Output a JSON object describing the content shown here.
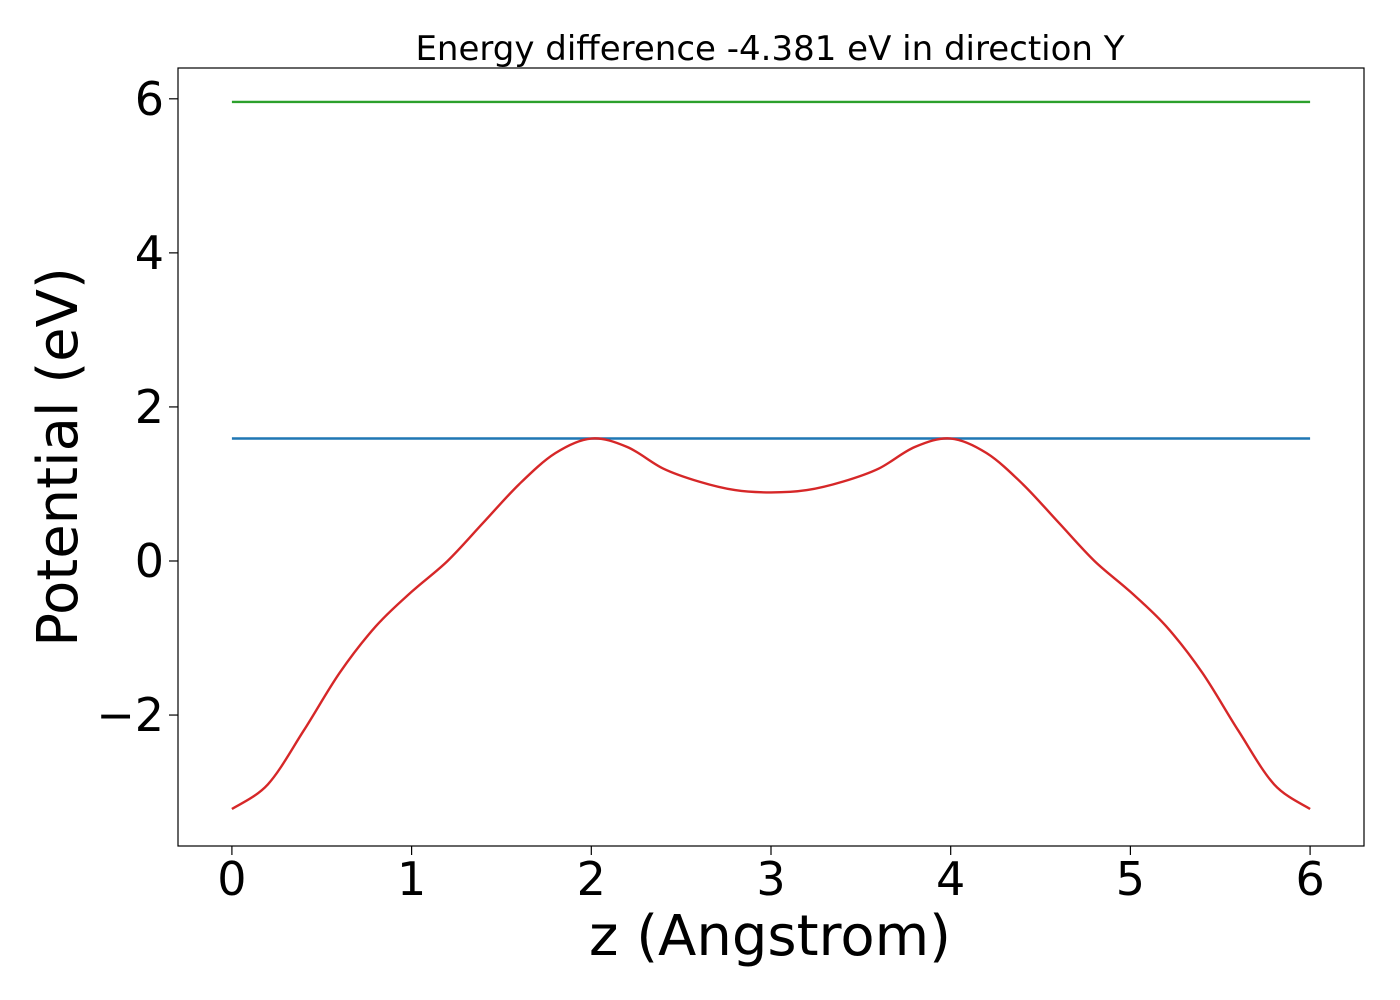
{
  "chart_data": {
    "type": "line",
    "title": "Energy difference -4.381 eV in direction Y",
    "xlabel": "z (Angstrom)",
    "ylabel": "Potential (eV)",
    "xlim": [
      -0.3,
      6.3
    ],
    "ylim": [
      -3.7,
      6.4
    ],
    "xticks": [
      0,
      1,
      2,
      3,
      4,
      5,
      6
    ],
    "xtick_labels": [
      "0",
      "1",
      "2",
      "3",
      "4",
      "5",
      "6"
    ],
    "yticks": [
      -2,
      0,
      2,
      4,
      6
    ],
    "ytick_labels": [
      "−2",
      "0",
      "2",
      "4",
      "6"
    ],
    "grid": false,
    "series": [
      {
        "color": "#2ca02c",
        "x": [
          0,
          6
        ],
        "y": [
          5.96,
          5.96
        ]
      },
      {
        "color": "#1f77b4",
        "x": [
          0,
          6
        ],
        "y": [
          1.59,
          1.59
        ]
      },
      {
        "color": "#d62728",
        "x": [
          0,
          0.2,
          0.4,
          0.6,
          0.8,
          1.0,
          1.2,
          1.4,
          1.6,
          1.8,
          2.0,
          2.2,
          2.4,
          2.6,
          2.8,
          3.0,
          3.2,
          3.4,
          3.6,
          3.8,
          4.0,
          4.2,
          4.4,
          4.6,
          4.8,
          5.0,
          5.2,
          5.4,
          5.6,
          5.8,
          6.0
        ],
        "y": [
          -3.22,
          -2.9,
          -2.2,
          -1.45,
          -0.85,
          -0.4,
          0.0,
          0.5,
          1.0,
          1.4,
          1.59,
          1.48,
          1.2,
          1.03,
          0.92,
          0.89,
          0.92,
          1.03,
          1.2,
          1.48,
          1.59,
          1.4,
          1.0,
          0.5,
          0.0,
          -0.4,
          -0.85,
          -1.45,
          -2.2,
          -2.9,
          -3.22
        ]
      }
    ]
  }
}
